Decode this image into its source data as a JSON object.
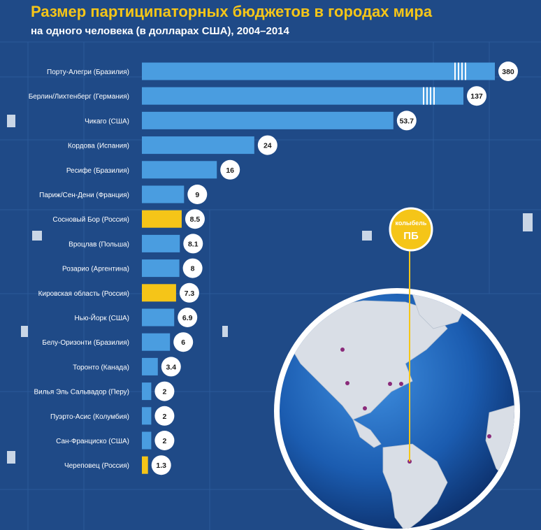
{
  "title": "Размер партиципаторных бюджетов в городах мира",
  "subtitle": "на одного человека (в долларах США), 2004–2014",
  "colors": {
    "background": "#1f4a87",
    "bar_default": "#4a9de0",
    "bar_highlight": "#f5c518",
    "title": "#f5c518"
  },
  "callout": {
    "top": "колыбель",
    "main": "ПБ"
  },
  "chart_data": {
    "type": "bar",
    "orientation": "horizontal",
    "axis_break": "bars for 380 and 137 are truncated",
    "categories": [
      "Порту-Алегри (Бразилия)",
      "Берлин/Лихтенберг (Германия)",
      "Чикаго (США)",
      "Кордова (Испания)",
      "Ресифе (Бразилия)",
      "Париж/Сен-Дени (Франция)",
      "Сосновый Бор (Россия)",
      "Вроцлав (Польша)",
      "Розарио (Аргентина)",
      "Кировская область (Россия)",
      "Нью-Йорк (США)",
      "Белу-Оризонти (Бразилия)",
      "Торонто (Канада)",
      "Вилья Эль Сальвадор (Перу)",
      "Пуэрто-Асис (Колумбия)",
      "Сан-Франциско (США)",
      "Череповец (Россия)"
    ],
    "values": [
      380,
      137,
      53.7,
      24,
      16,
      9,
      8.5,
      8.1,
      8,
      7.3,
      6.9,
      6,
      3.4,
      2,
      2,
      2,
      1.3
    ],
    "value_labels": [
      "380",
      "137",
      "53.7",
      "24",
      "16",
      "9",
      "8.5",
      "8.1",
      "8",
      "7.3",
      "6.9",
      "6",
      "3.4",
      "2",
      "2",
      "2",
      "1.3"
    ],
    "highlighted": [
      "Сосновый Бор (Россия)",
      "Кировская область (Россия)",
      "Череповец (Россия)"
    ]
  }
}
